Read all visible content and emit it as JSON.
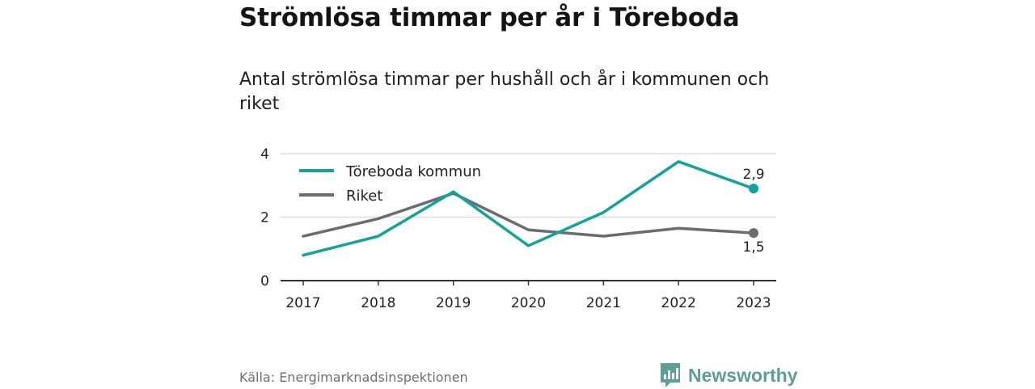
{
  "header": {
    "title": "Strömlösa timmar per år i Töreboda",
    "subtitle": "Antal strömlösa timmar per hushåll och år i kommunen och riket"
  },
  "footer": {
    "source": "Källa: Energimarknadsinspektionen",
    "brand": "Newsworthy"
  },
  "colors": {
    "toreboda": "#12a39a",
    "riket": "#6b6b73",
    "brand": "#5d9f98",
    "grid": "#dddddd",
    "axis": "#333333"
  },
  "chart_data": {
    "type": "line",
    "title": "Strömlösa timmar per år i Töreboda",
    "subtitle": "Antal strömlösa timmar per hushåll och år i kommunen och riket",
    "x": [
      "2017",
      "2018",
      "2019",
      "2020",
      "2021",
      "2022",
      "2023"
    ],
    "ylim": [
      0,
      4
    ],
    "yticks": [
      0,
      2,
      4
    ],
    "grid": true,
    "legend": "top-left",
    "series": [
      {
        "name": "Töreboda kommun",
        "color": "#12a39a",
        "values": [
          0.8,
          1.4,
          2.8,
          1.1,
          2.15,
          3.75,
          2.9
        ],
        "end_label": "2,9"
      },
      {
        "name": "Riket",
        "color": "#6b6b73",
        "values": [
          1.4,
          1.95,
          2.75,
          1.6,
          1.4,
          1.65,
          1.5
        ],
        "end_label": "1,5"
      }
    ]
  }
}
